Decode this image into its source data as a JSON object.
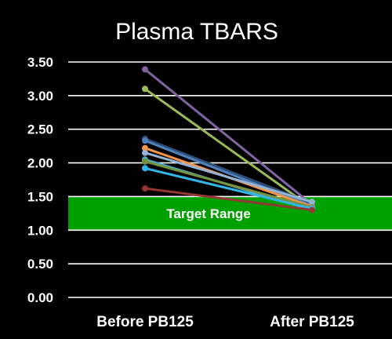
{
  "chart_data": {
    "type": "line",
    "title": "Plasma TBARS",
    "xlabel": "",
    "ylabel": "",
    "categories": [
      "Before PB125",
      "After PB125"
    ],
    "ylim": [
      0,
      3.5
    ],
    "yticks": [
      "0.00",
      "0.50",
      "1.00",
      "1.50",
      "2.00",
      "2.50",
      "3.00",
      "3.50"
    ],
    "grid": true,
    "legend": "none",
    "band": {
      "label": "Target Range",
      "from": 1.0,
      "to": 1.5,
      "color": "#00a000"
    },
    "series": [
      {
        "color": "#8064a2",
        "values": [
          3.39,
          1.38
        ]
      },
      {
        "color": "#9bbb59",
        "values": [
          3.1,
          1.33
        ]
      },
      {
        "color": "#2c4d75",
        "values": [
          2.36,
          1.4
        ]
      },
      {
        "color": "#4f81bd",
        "values": [
          2.33,
          1.36
        ]
      },
      {
        "color": "#f79646",
        "values": [
          2.22,
          1.35
        ]
      },
      {
        "color": "#95b3d7",
        "values": [
          2.15,
          1.42
        ]
      },
      {
        "color": "#4bacc6",
        "values": [
          2.05,
          1.3
        ]
      },
      {
        "color": "#76923c",
        "values": [
          2.02,
          1.34
        ]
      },
      {
        "color": "#31b6e7",
        "values": [
          1.92,
          1.32
        ]
      },
      {
        "color": "#943634",
        "values": [
          1.62,
          1.3
        ]
      }
    ]
  }
}
